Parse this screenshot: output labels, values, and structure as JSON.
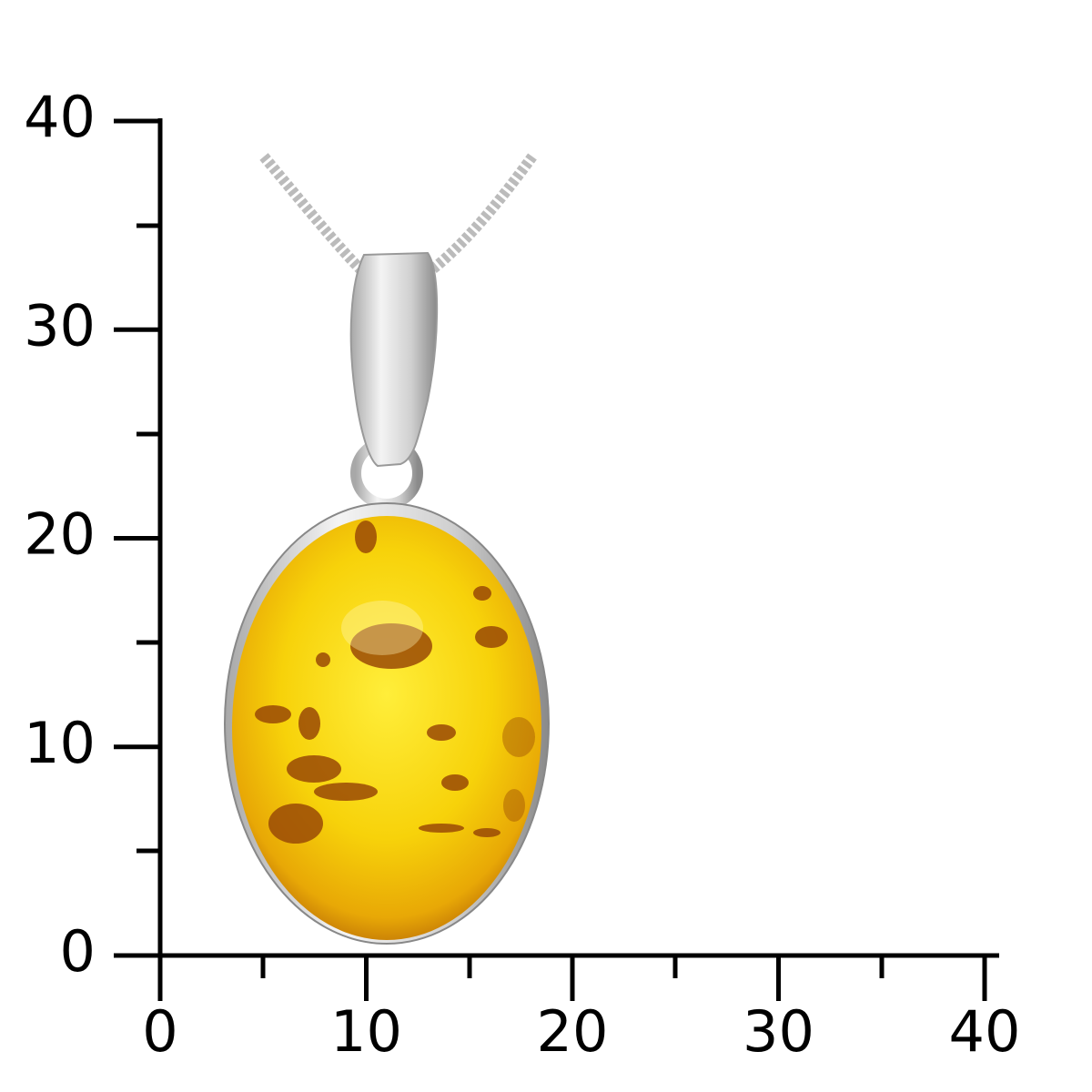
{
  "scale": {
    "xlim": [
      0,
      40
    ],
    "ylim": [
      0,
      40
    ],
    "xticks": [
      0,
      10,
      20,
      30,
      40
    ],
    "yticks": [
      0,
      10,
      20,
      30,
      40
    ]
  }
}
